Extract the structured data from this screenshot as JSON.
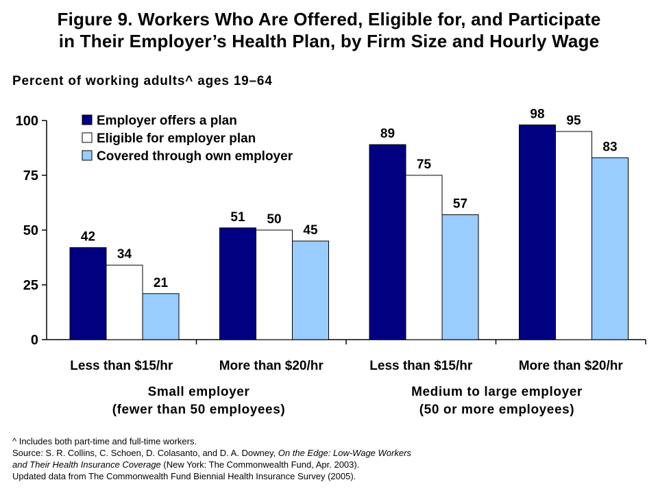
{
  "title": {
    "line1": "Figure 9. Workers Who Are Offered, Eligible for, and Participate",
    "line2": "in Their Employer’s Health Plan, by Firm Size and Hourly Wage"
  },
  "subtitle": "Percent of working adults^ ages 19–64",
  "groups": [
    {
      "line1": "Small employer",
      "line2": "(fewer than 50 employees)"
    },
    {
      "line1": "Medium to large employer",
      "line2": "(50 or more employees)"
    }
  ],
  "notes": {
    "note1": "^ Includes both part-time and full-time workers.",
    "source_prefix": "Source: S. R. Collins, C. Schoen, D. Colasanto, and D. A. Downey, ",
    "source_title_a": "On the Edge: Low-Wage Workers",
    "source_title_b": "and Their Health Insurance Coverage",
    "source_suffix": " (New York: The Commonwealth Fund, Apr. 2003).",
    "update": "Updated data from The Commonwealth Fund Biennial Health Insurance Survey (2005)."
  },
  "chart_data": {
    "type": "bar",
    "title": "",
    "categories": [
      "Less than $15/hr",
      "More than $20/hr",
      "Less than $15/hr",
      "More than $20/hr"
    ],
    "series": [
      {
        "name": "Employer offers a plan",
        "color": "#000080",
        "values": [
          42,
          51,
          89,
          98
        ]
      },
      {
        "name": "Eligible for employer plan",
        "color": "#ffffff",
        "values": [
          34,
          50,
          75,
          95
        ]
      },
      {
        "name": "Covered through own employer",
        "color": "#99ccff",
        "values": [
          21,
          45,
          57,
          83
        ]
      }
    ],
    "yticks": [
      0,
      25,
      50,
      75,
      100
    ],
    "ylim": [
      0,
      100
    ],
    "legend": "top-left",
    "grid": false
  }
}
